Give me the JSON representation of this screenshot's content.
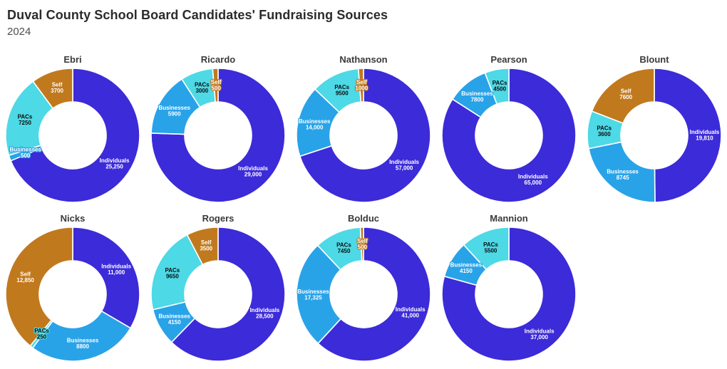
{
  "header": {
    "title": "Duval County School Board Candidates' Fundraising Sources",
    "subtitle": "2024"
  },
  "palette": {
    "Individuals": "#3c2bd8",
    "Businesses": "#29a3e8",
    "PACs": "#4dd9e6",
    "Self": "#c1791e"
  },
  "label_text_colors": {
    "Individuals": "#ffffff",
    "Businesses": "#ffffff",
    "PACs": "#0d0d0d",
    "Self": "#ffffff"
  },
  "layout": {
    "rows": [
      5,
      4
    ],
    "hole_ratio": 0.5,
    "start_angle_deg": 0,
    "direction": "clockwise",
    "slice_border_color": "#ffffff",
    "legend": "none",
    "value_format_rule": "thousands separator only for values >= 10000"
  },
  "chart_data": [
    {
      "type": "pie",
      "title": "Ebri",
      "categories": [
        "Individuals",
        "Businesses",
        "PACs",
        "Self"
      ],
      "values": [
        25250,
        500,
        7250,
        3700
      ]
    },
    {
      "type": "pie",
      "title": "Ricardo",
      "categories": [
        "Individuals",
        "Businesses",
        "PACs",
        "Self"
      ],
      "values": [
        29000,
        5900,
        3000,
        500
      ]
    },
    {
      "type": "pie",
      "title": "Nathanson",
      "categories": [
        "Individuals",
        "Businesses",
        "PACs",
        "Self"
      ],
      "values": [
        57000,
        14000,
        9500,
        1000
      ]
    },
    {
      "type": "pie",
      "title": "Pearson",
      "categories": [
        "Individuals",
        "Businesses",
        "PACs"
      ],
      "values": [
        65000,
        7800,
        4500
      ]
    },
    {
      "type": "pie",
      "title": "Blount",
      "categories": [
        "Individuals",
        "Businesses",
        "PACs",
        "Self"
      ],
      "values": [
        19810,
        8745,
        3600,
        7600
      ]
    },
    {
      "type": "pie",
      "title": "Nicks",
      "categories": [
        "Individuals",
        "Businesses",
        "PACs",
        "Self"
      ],
      "values": [
        11000,
        8800,
        250,
        12850
      ]
    },
    {
      "type": "pie",
      "title": "Rogers",
      "categories": [
        "Individuals",
        "Businesses",
        "PACs",
        "Self"
      ],
      "values": [
        28500,
        4150,
        9650,
        3500
      ]
    },
    {
      "type": "pie",
      "title": "Bolduc",
      "categories": [
        "Individuals",
        "Businesses",
        "PACs",
        "Self"
      ],
      "values": [
        41000,
        17325,
        7450,
        500
      ]
    },
    {
      "type": "pie",
      "title": "Mannion",
      "categories": [
        "Individuals",
        "Businesses",
        "PACs"
      ],
      "values": [
        37000,
        4150,
        5500
      ]
    }
  ]
}
